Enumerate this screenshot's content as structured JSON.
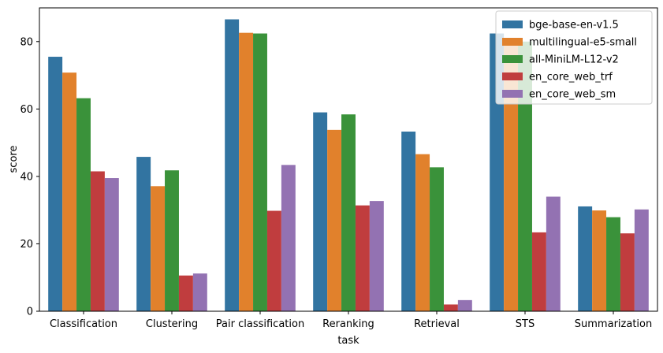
{
  "chart_data": {
    "type": "bar",
    "xlabel": "task",
    "ylabel": "score",
    "ylim": [
      0,
      90
    ],
    "yticks": [
      0,
      20,
      40,
      60,
      80
    ],
    "legend_position": "top-right",
    "grid": false,
    "categories": [
      "Classification",
      "Clustering",
      "Pair classification",
      "Reranking",
      "Retrieval",
      "STS",
      "Summarization"
    ],
    "series": [
      {
        "name": "bge-base-en-v1.5",
        "color": "#3274a1",
        "values": [
          75.5,
          45.8,
          86.6,
          59.0,
          53.3,
          82.4,
          31.1
        ]
      },
      {
        "name": "multilingual-e5-small",
        "color": "#e1812c",
        "values": [
          70.8,
          37.1,
          82.6,
          53.8,
          46.6,
          79.1,
          29.9
        ]
      },
      {
        "name": "all-MiniLM-L12-v2",
        "color": "#3a923a",
        "values": [
          63.2,
          41.8,
          82.4,
          58.4,
          42.7,
          80.0,
          27.9
        ]
      },
      {
        "name": "en_core_web_trf",
        "color": "#c03d3e",
        "values": [
          41.5,
          10.6,
          29.8,
          31.4,
          2.0,
          23.4,
          23.1
        ]
      },
      {
        "name": "en_core_web_sm",
        "color": "#9372b2",
        "values": [
          39.5,
          11.2,
          43.4,
          32.7,
          3.3,
          34.0,
          30.2
        ]
      }
    ]
  }
}
